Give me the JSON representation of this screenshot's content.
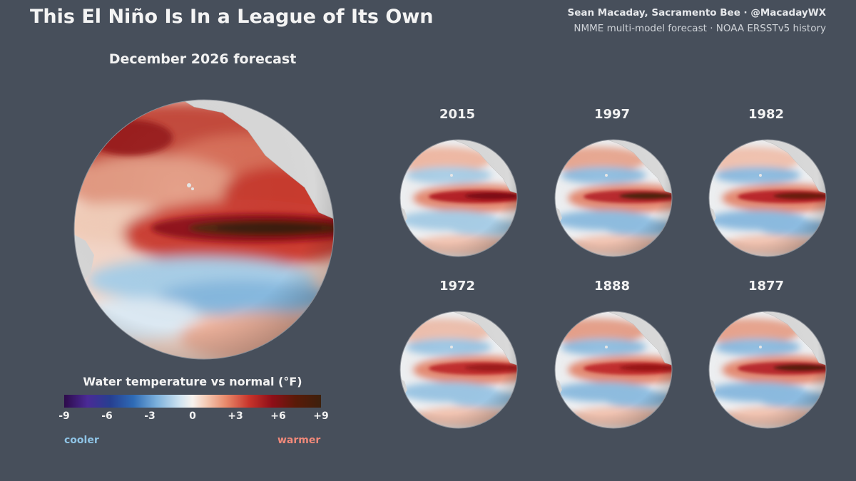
{
  "header": {
    "title": "This El Niño Is In a League of Its Own",
    "credit": "Sean Macaday, Sacramento Bee · @MacadayWX",
    "source": "NMME multi-model forecast · NOAA ERSSTv5 history"
  },
  "main_map": {
    "title": "December 2026 forecast"
  },
  "historical": [
    {
      "year": "2015"
    },
    {
      "year": "1997"
    },
    {
      "year": "1982"
    },
    {
      "year": "1972"
    },
    {
      "year": "1888"
    },
    {
      "year": "1877"
    }
  ],
  "legend": {
    "title": "Water temperature vs normal (°F)",
    "ticks": [
      "-9",
      "-6",
      "-3",
      "0",
      "+3",
      "+6",
      "+9"
    ],
    "tick_values": [
      -9,
      -6,
      -3,
      0,
      3,
      6,
      9
    ],
    "range": [
      -9,
      9
    ],
    "cooler_label": "cooler",
    "warmer_label": "warmer",
    "colors": [
      "#2d0a4a",
      "#263f91",
      "#7bb0dc",
      "#f7f2ee",
      "#e8896a",
      "#8e0e18",
      "#3d200c"
    ]
  }
}
